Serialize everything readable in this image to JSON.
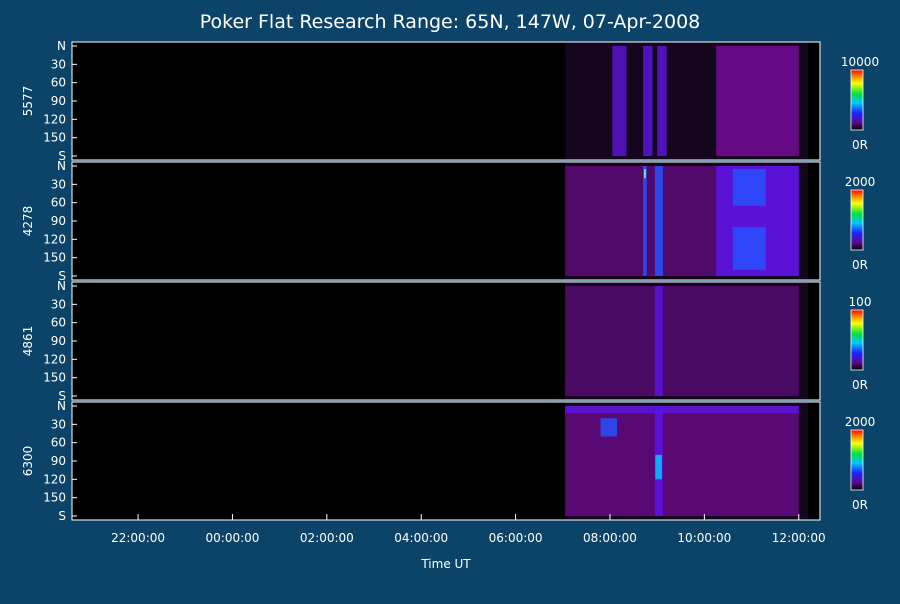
{
  "chart_data": {
    "type": "heatmap",
    "title": "Poker Flat Research Range: 65N, 147W, 07-Apr-2008",
    "xlabel": "Time UT",
    "x_ticks": [
      "22:00:00",
      "00:00:00",
      "02:00:00",
      "04:00:00",
      "06:00:00",
      "08:00:00",
      "10:00:00",
      "12:00:00"
    ],
    "x_tick_hours": [
      22,
      24,
      26,
      28,
      30,
      32,
      34,
      36
    ],
    "x_range_hours": [
      20.6,
      36.45
    ],
    "data_start_hours": 31.05,
    "y_ticks": [
      "N",
      "30",
      "60",
      "90",
      "120",
      "150",
      "S"
    ],
    "y_tick_values": [
      0,
      30,
      60,
      90,
      120,
      150,
      180
    ],
    "y_range": [
      0,
      180
    ],
    "panels": [
      {
        "label": "5577",
        "scale_max": 10000,
        "scale_max_label": "10000",
        "scale_min_label": "0R",
        "features": [
          {
            "t0": 32.05,
            "t1": 32.35,
            "y0": 0,
            "y1": 180,
            "level": 0.18
          },
          {
            "t0": 32.7,
            "t1": 32.9,
            "y0": 0,
            "y1": 180,
            "level": 0.25
          },
          {
            "t0": 33.0,
            "t1": 33.2,
            "y0": 0,
            "y1": 180,
            "level": 0.22
          },
          {
            "t0": 34.25,
            "t1": 36.0,
            "y0": 0,
            "y1": 180,
            "level": 0.14
          }
        ]
      },
      {
        "label": "4278",
        "scale_max": 2000,
        "scale_max_label": "2000",
        "scale_min_label": "0R",
        "features": [
          {
            "t0": 31.05,
            "t1": 36.0,
            "y0": 0,
            "y1": 180,
            "level": 0.08
          },
          {
            "t0": 32.7,
            "t1": 32.78,
            "y0": 0,
            "y1": 180,
            "level": 0.4
          },
          {
            "t0": 32.95,
            "t1": 33.12,
            "y0": 0,
            "y1": 180,
            "level": 0.5
          },
          {
            "t0": 34.25,
            "t1": 36.0,
            "y0": 0,
            "y1": 180,
            "level": 0.35
          },
          {
            "t0": 34.6,
            "t1": 35.3,
            "y0": 5,
            "y1": 65,
            "level": 0.6
          },
          {
            "t0": 34.6,
            "t1": 35.3,
            "y0": 100,
            "y1": 170,
            "level": 0.45
          },
          {
            "t0": 32.72,
            "t1": 32.76,
            "y0": 5,
            "y1": 20,
            "level": 0.9
          }
        ]
      },
      {
        "label": "4861",
        "scale_max": 100,
        "scale_max_label": "100",
        "scale_min_label": "0R",
        "features": [
          {
            "t0": 31.05,
            "t1": 36.0,
            "y0": 0,
            "y1": 180,
            "level": 0.06
          },
          {
            "t0": 32.95,
            "t1": 33.12,
            "y0": 0,
            "y1": 180,
            "level": 0.3
          }
        ]
      },
      {
        "label": "6300",
        "scale_max": 2000,
        "scale_max_label": "2000",
        "scale_min_label": "0R",
        "features": [
          {
            "t0": 31.05,
            "t1": 36.0,
            "y0": 0,
            "y1": 180,
            "level": 0.1
          },
          {
            "t0": 31.05,
            "t1": 36.0,
            "y0": 0,
            "y1": 12,
            "level": 0.28
          },
          {
            "t0": 31.8,
            "t1": 32.15,
            "y0": 20,
            "y1": 50,
            "level": 0.55
          },
          {
            "t0": 32.95,
            "t1": 33.12,
            "y0": 0,
            "y1": 180,
            "level": 0.35
          },
          {
            "t0": 32.96,
            "t1": 33.1,
            "y0": 80,
            "y1": 120,
            "level": 0.7
          }
        ]
      }
    ]
  }
}
